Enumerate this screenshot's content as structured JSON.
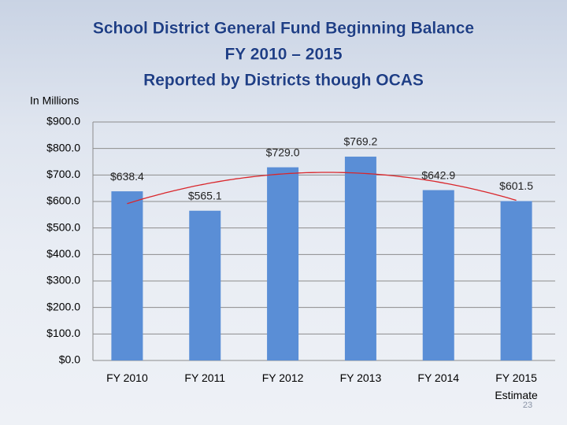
{
  "chart_data": {
    "type": "bar",
    "title": [
      "School District General Fund Beginning Balance",
      "FY 2010 – 2015",
      "Reported by Districts though OCAS"
    ],
    "y_label": "In Millions",
    "categories": [
      "FY 2010",
      "FY 2011",
      "FY 2012",
      "FY 2013",
      "FY 2014",
      "FY 2015 Estimate"
    ],
    "values": [
      638.4,
      565.1,
      729.0,
      769.2,
      642.9,
      601.5
    ],
    "value_labels": [
      "$638.4",
      "$565.1",
      "$729.0",
      "$769.2",
      "$642.9",
      "$601.5"
    ],
    "color": "#5a8ed6",
    "trendline_color": "#d9262b",
    "ylim": [
      0,
      900
    ],
    "yticks": [
      {
        "value": 0,
        "label": "$0.0"
      },
      {
        "value": 100,
        "label": "$100.0"
      },
      {
        "value": 200,
        "label": "$200.0"
      },
      {
        "value": 300,
        "label": "$300.0"
      },
      {
        "value": 400,
        "label": "$400.0"
      },
      {
        "value": 500,
        "label": "$500.0"
      },
      {
        "value": 600,
        "label": "$600.0"
      },
      {
        "value": 700,
        "label": "$700.0"
      },
      {
        "value": 800,
        "label": "$800.0"
      },
      {
        "value": 900,
        "label": "$900.0"
      }
    ],
    "grid": true,
    "page_number": "23"
  }
}
